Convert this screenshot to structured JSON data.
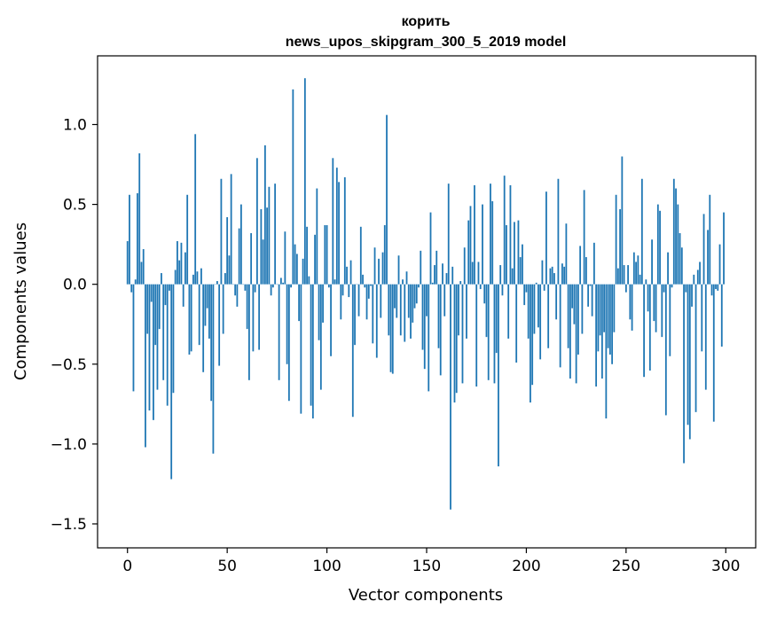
{
  "chart_data": {
    "type": "bar",
    "title": "корить",
    "subtitle": "news_upos_skipgram_300_5_2019 model",
    "xlabel": "Vector components",
    "ylabel": "Components values",
    "xlim": [
      -15,
      315
    ],
    "ylim": [
      -1.65,
      1.43
    ],
    "xticks": [
      0,
      50,
      100,
      150,
      200,
      250,
      300
    ],
    "xtick_labels": [
      "0",
      "50",
      "100",
      "150",
      "200",
      "250",
      "300"
    ],
    "yticks": [
      -1.5,
      -1.0,
      -0.5,
      0.0,
      0.5,
      1.0
    ],
    "ytick_labels": [
      "−1.5",
      "−1.0",
      "−0.5",
      "0.0",
      "0.5",
      "1.0"
    ],
    "grid": false,
    "bar_color": "#1f77b4",
    "x": [
      0,
      1,
      2,
      3,
      4,
      5,
      6,
      7,
      8,
      9,
      10,
      11,
      12,
      13,
      14,
      15,
      16,
      17,
      18,
      19,
      20,
      21,
      22,
      23,
      24,
      25,
      26,
      27,
      28,
      29,
      30,
      31,
      32,
      33,
      34,
      35,
      36,
      37,
      38,
      39,
      40,
      41,
      42,
      43,
      44,
      45,
      46,
      47,
      48,
      49,
      50,
      51,
      52,
      53,
      54,
      55,
      56,
      57,
      58,
      59,
      60,
      61,
      62,
      63,
      64,
      65,
      66,
      67,
      68,
      69,
      70,
      71,
      72,
      73,
      74,
      75,
      76,
      77,
      78,
      79,
      80,
      81,
      82,
      83,
      84,
      85,
      86,
      87,
      88,
      89,
      90,
      91,
      92,
      93,
      94,
      95,
      96,
      97,
      98,
      99,
      100,
      101,
      102,
      103,
      104,
      105,
      106,
      107,
      108,
      109,
      110,
      111,
      112,
      113,
      114,
      115,
      116,
      117,
      118,
      119,
      120,
      121,
      122,
      123,
      124,
      125,
      126,
      127,
      128,
      129,
      130,
      131,
      132,
      133,
      134,
      135,
      136,
      137,
      138,
      139,
      140,
      141,
      142,
      143,
      144,
      145,
      146,
      147,
      148,
      149,
      150,
      151,
      152,
      153,
      154,
      155,
      156,
      157,
      158,
      159,
      160,
      161,
      162,
      163,
      164,
      165,
      166,
      167,
      168,
      169,
      170,
      171,
      172,
      173,
      174,
      175,
      176,
      177,
      178,
      179,
      180,
      181,
      182,
      183,
      184,
      185,
      186,
      187,
      188,
      189,
      190,
      191,
      192,
      193,
      194,
      195,
      196,
      197,
      198,
      199,
      200,
      201,
      202,
      203,
      204,
      205,
      206,
      207,
      208,
      209,
      210,
      211,
      212,
      213,
      214,
      215,
      216,
      217,
      218,
      219,
      220,
      221,
      222,
      223,
      224,
      225,
      226,
      227,
      228,
      229,
      230,
      231,
      232,
      233,
      234,
      235,
      236,
      237,
      238,
      239,
      240,
      241,
      242,
      243,
      244,
      245,
      246,
      247,
      248,
      249,
      250,
      251,
      252,
      253,
      254,
      255,
      256,
      257,
      258,
      259,
      260,
      261,
      262,
      263,
      264,
      265,
      266,
      267,
      268,
      269,
      270,
      271,
      272,
      273,
      274,
      275,
      276,
      277,
      278,
      279,
      280,
      281,
      282,
      283,
      284,
      285,
      286,
      287,
      288,
      289,
      290,
      291,
      292,
      293,
      294,
      295,
      296,
      297,
      298,
      299
    ],
    "values": [
      0.27,
      0.56,
      -0.05,
      -0.67,
      0.03,
      0.57,
      0.82,
      0.14,
      0.22,
      -1.02,
      -0.31,
      -0.79,
      -0.11,
      -0.85,
      -0.38,
      -0.66,
      -0.28,
      0.07,
      -0.6,
      -0.13,
      -0.76,
      -0.04,
      -1.22,
      -0.68,
      0.09,
      0.27,
      0.15,
      0.26,
      -0.14,
      0.2,
      0.56,
      -0.44,
      -0.42,
      0.06,
      0.94,
      0.08,
      -0.38,
      0.1,
      -0.55,
      -0.26,
      -0.15,
      -0.34,
      -0.73,
      -1.06,
      0.0,
      0.02,
      -0.51,
      0.66,
      -0.31,
      0.07,
      0.42,
      0.18,
      0.69,
      0.0,
      -0.07,
      -0.14,
      0.35,
      0.5,
      0.0,
      -0.04,
      -0.28,
      -0.6,
      0.32,
      -0.42,
      -0.05,
      0.79,
      -0.41,
      0.47,
      0.28,
      0.87,
      0.48,
      0.61,
      -0.07,
      -0.02,
      0.63,
      0.0,
      -0.6,
      0.04,
      0.01,
      0.33,
      -0.5,
      -0.73,
      -0.02,
      1.22,
      0.25,
      0.19,
      -0.23,
      -0.81,
      0.16,
      1.29,
      0.36,
      0.05,
      -0.76,
      -0.84,
      0.31,
      0.6,
      -0.35,
      -0.66,
      -0.24,
      0.37,
      0.37,
      -0.02,
      -0.45,
      0.79,
      0.03,
      0.73,
      0.64,
      -0.22,
      -0.07,
      0.67,
      0.11,
      -0.08,
      0.15,
      -0.83,
      -0.38,
      0.0,
      -0.2,
      0.36,
      0.06,
      -0.02,
      -0.22,
      -0.09,
      -0.01,
      -0.37,
      0.23,
      -0.46,
      0.16,
      -0.21,
      0.2,
      0.37,
      1.06,
      -0.32,
      -0.55,
      -0.56,
      -0.15,
      -0.21,
      0.18,
      -0.32,
      0.03,
      -0.36,
      0.08,
      -0.21,
      -0.34,
      -0.24,
      -0.15,
      -0.12,
      -0.02,
      0.21,
      -0.41,
      -0.53,
      -0.2,
      -0.67,
      0.45,
      0.01,
      0.12,
      0.21,
      -0.4,
      -0.57,
      0.13,
      -0.2,
      0.07,
      0.63,
      -1.41,
      0.11,
      -0.74,
      -0.68,
      -0.32,
      0.02,
      -0.62,
      0.23,
      -0.34,
      0.4,
      0.49,
      0.14,
      0.62,
      -0.64,
      0.14,
      -0.03,
      0.5,
      -0.12,
      -0.33,
      -0.6,
      0.63,
      0.52,
      -0.62,
      -0.43,
      -1.14,
      0.12,
      -0.07,
      0.68,
      0.37,
      -0.34,
      0.62,
      0.1,
      0.39,
      -0.49,
      0.4,
      0.17,
      0.25,
      -0.13,
      -0.05,
      -0.34,
      -0.74,
      -0.63,
      -0.31,
      0.01,
      -0.27,
      -0.47,
      0.15,
      -0.04,
      0.58,
      -0.4,
      0.1,
      0.11,
      0.07,
      -0.22,
      0.66,
      -0.52,
      0.13,
      0.11,
      0.38,
      -0.4,
      -0.59,
      -0.15,
      -0.25,
      -0.62,
      -0.44,
      0.24,
      -0.31,
      0.59,
      0.17,
      -0.14,
      -0.01,
      -0.2,
      0.26,
      -0.64,
      -0.42,
      -0.32,
      -0.59,
      -0.3,
      -0.84,
      -0.4,
      -0.44,
      -0.5,
      -0.3,
      0.56,
      0.1,
      0.47,
      0.8,
      0.12,
      -0.05,
      0.12,
      -0.22,
      -0.29,
      0.2,
      0.14,
      0.18,
      0.06,
      0.66,
      -0.58,
      0.03,
      -0.17,
      -0.54,
      0.28,
      -0.23,
      -0.3,
      0.5,
      0.46,
      -0.33,
      -0.05,
      -0.82,
      0.2,
      -0.45,
      -0.02,
      0.66,
      0.6,
      0.5,
      0.32,
      0.23,
      -1.12,
      -0.05,
      -0.88,
      -0.97,
      -0.14,
      0.06,
      -0.8,
      0.09,
      0.14,
      -0.42,
      0.44,
      -0.66,
      0.34,
      0.56,
      -0.07,
      -0.86,
      -0.03,
      -0.04,
      0.25,
      -0.39,
      0.45
    ]
  }
}
